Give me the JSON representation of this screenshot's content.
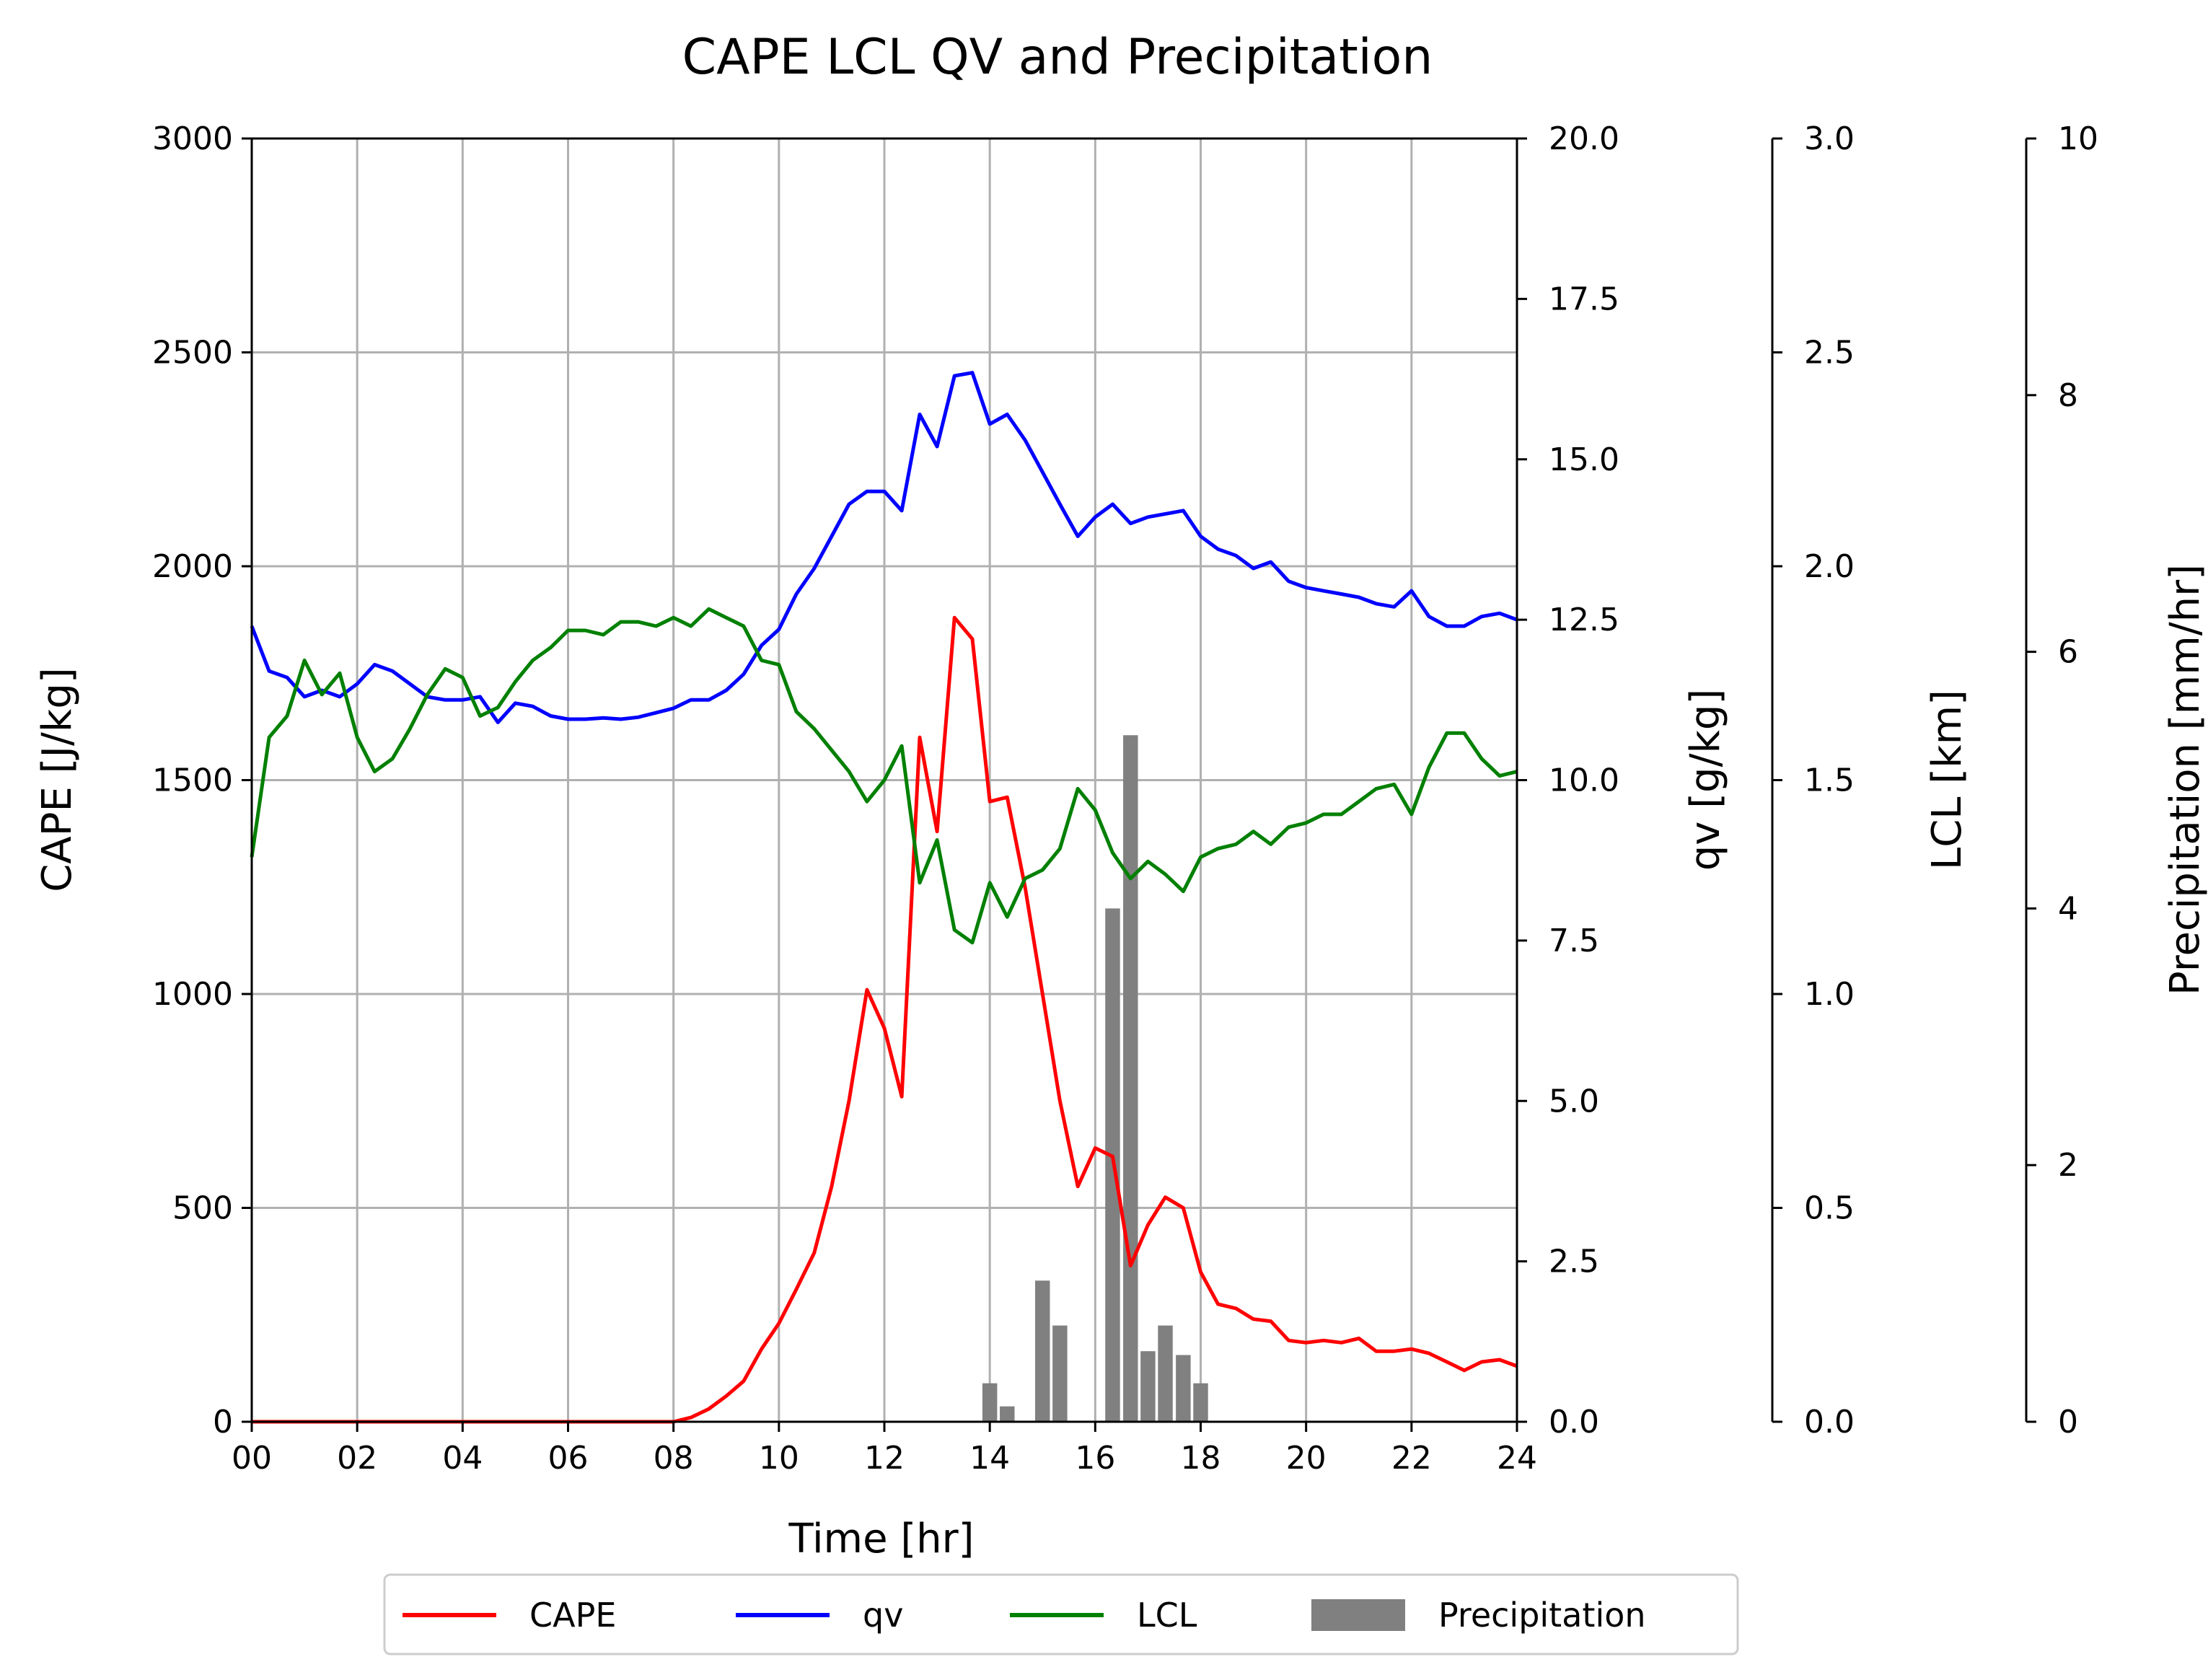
{
  "chart_data": {
    "type": "line",
    "title": "CAPE LCL QV and Precipitation",
    "xlabel": "Time [hr]",
    "xlim": [
      0,
      24
    ],
    "x_ticks": [
      "00",
      "02",
      "04",
      "06",
      "08",
      "10",
      "12",
      "14",
      "16",
      "18",
      "20",
      "22",
      "24"
    ],
    "grid": true,
    "legend": {
      "placement": "bottom-center",
      "entries": [
        "CAPE",
        "qv",
        "LCL",
        "Precipitation"
      ]
    },
    "axes": {
      "cape": {
        "label": "CAPE [J/kg]",
        "ylim": [
          0,
          3000
        ],
        "ticks": [
          "0",
          "500",
          "1000",
          "1500",
          "2000",
          "2500",
          "3000"
        ],
        "side": "left"
      },
      "qv": {
        "label": "qv [g/kg]",
        "ylim": [
          0,
          20
        ],
        "ticks": [
          "0.0",
          "2.5",
          "5.0",
          "7.5",
          "10.0",
          "12.5",
          "15.0",
          "17.5",
          "20.0"
        ],
        "side": "right"
      },
      "lcl": {
        "label": "LCL [km]",
        "ylim": [
          0,
          3
        ],
        "ticks": [
          "0.0",
          "0.5",
          "1.0",
          "1.5",
          "2.0",
          "2.5",
          "3.0"
        ],
        "side": "right-offset-1"
      },
      "precip": {
        "label": "Precipitation [mm/hr]",
        "ylim": [
          0,
          10
        ],
        "ticks": [
          "0",
          "2",
          "4",
          "6",
          "8",
          "10"
        ],
        "side": "right-offset-2"
      }
    },
    "series": [
      {
        "name": "CAPE",
        "color": "#ff0000",
        "axis": "cape",
        "x": [
          0,
          0.33,
          0.67,
          1,
          1.33,
          1.67,
          2,
          2.33,
          2.67,
          3,
          3.33,
          3.67,
          4,
          4.33,
          4.67,
          5,
          5.33,
          5.67,
          6,
          6.33,
          6.67,
          7,
          7.33,
          7.67,
          8,
          8.33,
          8.67,
          9,
          9.33,
          9.67,
          10,
          10.33,
          10.67,
          11,
          11.33,
          11.67,
          12,
          12.33,
          12.67,
          13,
          13.33,
          13.67,
          14,
          14.33,
          14.67,
          15,
          15.33,
          15.67,
          16,
          16.33,
          16.67,
          17,
          17.33,
          17.67,
          18,
          18.33,
          18.67,
          19,
          19.33,
          19.67,
          20,
          20.33,
          20.67,
          21,
          21.33,
          21.67,
          22,
          22.33,
          22.67,
          23,
          23.33,
          23.67,
          24
        ],
        "values": [
          0,
          0,
          0,
          0,
          0,
          0,
          0,
          0,
          0,
          0,
          0,
          0,
          0,
          0,
          0,
          0,
          0,
          0,
          0,
          0,
          0,
          0,
          0,
          0,
          0,
          10,
          30,
          60,
          95,
          170,
          230,
          310,
          395,
          550,
          750,
          1010,
          920,
          760,
          1600,
          1380,
          1880,
          1830,
          1450,
          1460,
          1250,
          1000,
          750,
          550,
          640,
          620,
          365,
          460,
          525,
          500,
          350,
          275,
          265,
          240,
          235,
          190,
          185,
          190,
          185,
          195,
          165,
          165,
          170,
          160,
          140,
          120,
          140,
          145,
          130
        ]
      },
      {
        "name": "qv",
        "color": "#0000ff",
        "axis": "qv",
        "x": [
          0,
          0.33,
          0.67,
          1,
          1.33,
          1.67,
          2,
          2.33,
          2.67,
          3,
          3.33,
          3.67,
          4,
          4.33,
          4.67,
          5,
          5.33,
          5.67,
          6,
          6.33,
          6.67,
          7,
          7.33,
          7.67,
          8,
          8.33,
          8.67,
          9,
          9.33,
          9.67,
          10,
          10.33,
          10.67,
          11,
          11.33,
          11.67,
          12,
          12.33,
          12.67,
          13,
          13.33,
          13.67,
          14,
          14.33,
          14.67,
          15,
          15.33,
          15.67,
          16,
          16.33,
          16.67,
          17,
          17.33,
          17.67,
          18,
          18.33,
          18.67,
          19,
          19.33,
          19.67,
          20,
          20.33,
          20.67,
          21,
          21.33,
          21.67,
          22,
          22.33,
          22.67,
          23,
          23.33,
          23.67,
          24
        ],
        "values": [
          12.4,
          11.7,
          11.6,
          11.3,
          11.4,
          11.3,
          11.5,
          11.8,
          11.7,
          11.5,
          11.3,
          11.25,
          11.25,
          11.3,
          10.9,
          11.2,
          11.15,
          11.0,
          10.95,
          10.95,
          10.97,
          10.95,
          10.98,
          11.05,
          11.12,
          11.25,
          11.25,
          11.4,
          11.65,
          12.1,
          12.35,
          12.9,
          13.3,
          13.8,
          14.3,
          14.5,
          14.5,
          14.2,
          15.7,
          15.2,
          16.3,
          16.35,
          15.55,
          15.7,
          15.3,
          14.8,
          14.3,
          13.8,
          14.1,
          14.3,
          14.0,
          14.1,
          14.15,
          14.2,
          13.8,
          13.6,
          13.5,
          13.3,
          13.4,
          13.1,
          13.0,
          12.95,
          12.9,
          12.85,
          12.75,
          12.7,
          12.95,
          12.55,
          12.4,
          12.4,
          12.55,
          12.6,
          12.5
        ]
      },
      {
        "name": "LCL",
        "color": "#008000",
        "axis": "lcl",
        "x": [
          0,
          0.33,
          0.67,
          1,
          1.33,
          1.67,
          2,
          2.33,
          2.67,
          3,
          3.33,
          3.67,
          4,
          4.33,
          4.67,
          5,
          5.33,
          5.67,
          6,
          6.33,
          6.67,
          7,
          7.33,
          7.67,
          8,
          8.33,
          8.67,
          9,
          9.33,
          9.67,
          10,
          10.33,
          10.67,
          11,
          11.33,
          11.67,
          12,
          12.33,
          12.67,
          13,
          13.33,
          13.67,
          14,
          14.33,
          14.67,
          15,
          15.33,
          15.67,
          16,
          16.33,
          16.67,
          17,
          17.33,
          17.67,
          18,
          18.33,
          18.67,
          19,
          19.33,
          19.67,
          20,
          20.33,
          20.67,
          21,
          21.33,
          21.67,
          22,
          22.33,
          22.67,
          23,
          23.33,
          23.67,
          24
        ],
        "values": [
          1.32,
          1.6,
          1.65,
          1.78,
          1.7,
          1.75,
          1.6,
          1.52,
          1.55,
          1.62,
          1.7,
          1.76,
          1.74,
          1.65,
          1.67,
          1.73,
          1.78,
          1.81,
          1.85,
          1.85,
          1.84,
          1.87,
          1.87,
          1.86,
          1.88,
          1.86,
          1.9,
          1.88,
          1.86,
          1.78,
          1.77,
          1.66,
          1.62,
          1.57,
          1.52,
          1.45,
          1.5,
          1.58,
          1.26,
          1.36,
          1.15,
          1.12,
          1.26,
          1.18,
          1.27,
          1.29,
          1.34,
          1.48,
          1.43,
          1.33,
          1.27,
          1.31,
          1.28,
          1.24,
          1.32,
          1.34,
          1.35,
          1.38,
          1.35,
          1.39,
          1.4,
          1.42,
          1.42,
          1.45,
          1.48,
          1.49,
          1.42,
          1.53,
          1.61,
          1.61,
          1.55,
          1.51,
          1.52
        ]
      }
    ],
    "bars": {
      "name": "Precipitation",
      "color": "#808080",
      "axis": "precip",
      "x": [
        14.0,
        14.33,
        15.0,
        15.33,
        16.33,
        16.67,
        17.0,
        17.33,
        17.67,
        18.0
      ],
      "values": [
        0.3,
        0.12,
        1.1,
        0.75,
        4.0,
        5.35,
        0.55,
        0.75,
        0.52,
        0.3
      ]
    }
  }
}
